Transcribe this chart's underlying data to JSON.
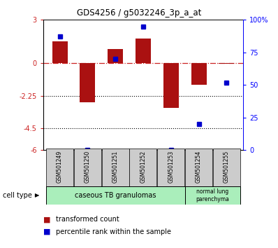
{
  "title": "GDS4256 / g5032246_3p_a_at",
  "samples": [
    "GSM501249",
    "GSM501250",
    "GSM501251",
    "GSM501252",
    "GSM501253",
    "GSM501254",
    "GSM501255"
  ],
  "red_bars": [
    1.5,
    -2.7,
    1.0,
    1.7,
    -3.1,
    -1.5,
    -0.05
  ],
  "blue_dots_pct": [
    87,
    0,
    70,
    95,
    0,
    20,
    52
  ],
  "ylim_left": [
    -6,
    3
  ],
  "ylim_right": [
    0,
    100
  ],
  "yticks_left": [
    3,
    0,
    -2.25,
    -4.5,
    -6
  ],
  "ytick_labels_left": [
    "3",
    "0",
    "-2.25",
    "-4.5",
    "-6"
  ],
  "yticks_right": [
    100,
    75,
    50,
    25,
    0
  ],
  "ytick_labels_right": [
    "100%",
    "75",
    "50",
    "25",
    "0"
  ],
  "hlines_dotted": [
    -2.25,
    -4.5
  ],
  "bar_color": "#AA1111",
  "dot_color": "#0000CC",
  "zero_line_color": "#CC2222",
  "bg_color": "#FFFFFF",
  "bar_width": 0.55,
  "group1_label": "caseous TB granulomas",
  "group2_label": "normal lung\nparenchyma",
  "group_color": "#AAEEBB",
  "sample_box_color": "#CCCCCC",
  "cell_type_label": "cell type"
}
